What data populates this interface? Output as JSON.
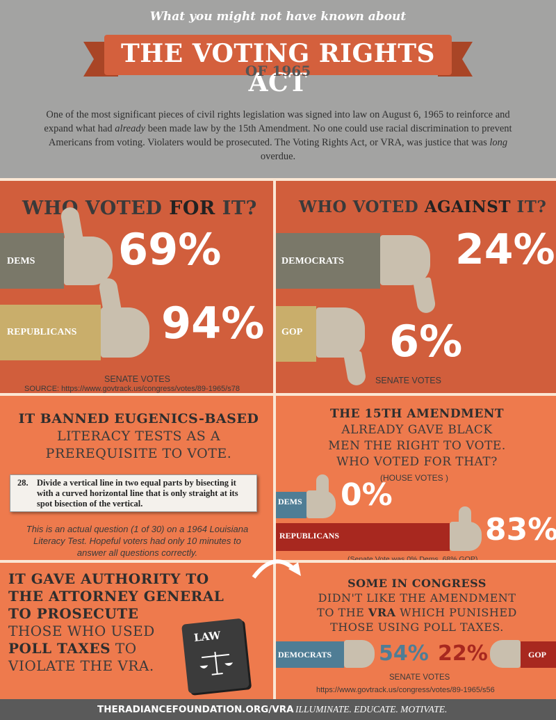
{
  "header": {
    "pretitle": "What you might not have known about",
    "title": "THE VOTING RIGHTS ACT",
    "subtitle": "OF 1965",
    "intro_1": "One of the most significant pieces of civil rights legislation was signed into law on August 6, 1965 to reinforce and expand what had ",
    "intro_em1": "already",
    "intro_2": " been made law by the 15th Amendment. No one could use racial discrimination to prevent Americans from voting. Violaters would be prosecuted. The Voting Rights Act, or VRA, was justice that was ",
    "intro_em2": "long",
    "intro_3": " overdue."
  },
  "voted_for": {
    "heading_pre": "WHO VOTED ",
    "heading_em": "FOR",
    "heading_post": " IT?",
    "dems_label": "DEMS",
    "dems_pct": "69%",
    "rep_label": "REPUBLICANS",
    "rep_pct": "94%",
    "caption": "SENATE VOTES",
    "source": "SOURCE:  https://www.govtrack.us/congress/votes/89-1965/s78"
  },
  "voted_against": {
    "heading_pre": "WHO VOTED ",
    "heading_em": "AGAINST",
    "heading_post": " IT?",
    "dems_label": "DEMOCRATS",
    "dems_pct": "24%",
    "gop_label": "GOP",
    "gop_pct": "6%",
    "caption": "SENATE VOTES"
  },
  "eugenics": {
    "line1": "IT BANNED EUGENICS-BASED",
    "line2": "LITERACY TESTS AS A",
    "line3": "PREREQUISITE TO VOTE.",
    "q_num": "28.",
    "q_text": "Divide a vertical line in two equal parts by bisecting it with a curved horizontal line that is only straight at its spot bisection of the vertical.",
    "note": "This is an actual question (1 of 30) on a 1964 Louisiana Literacy Test. Hopeful voters had only 10 minutes to answer all questions correctly."
  },
  "fifteenth": {
    "line1": "THE 15TH AMENDMENT",
    "line2": "ALREADY GAVE BLACK",
    "line3": "MEN THE RIGHT TO VOTE.",
    "line4": "WHO VOTED FOR THAT?",
    "house": "(HOUSE VOTES )",
    "dems_label": "DEMS",
    "dems_pct": "0%",
    "rep_label": "REPUBLICANS",
    "rep_pct": "83%",
    "senate_note": "(Senate Vote was 0% Dems, 68% GOP)"
  },
  "attorney": {
    "line1": "IT GAVE AUTHORITY TO",
    "line2": "THE ATTORNEY GENERAL",
    "line3": "TO PROSECUTE",
    "line4": "THOSE WHO USED",
    "line5": "POLL TAXES",
    "line5b": " TO",
    "line6": "VIOLATE THE VRA.",
    "book_label": "LAW"
  },
  "poll_tax": {
    "line1": "SOME IN CONGRESS",
    "line2": "DIDN'T LIKE THE AMENDMENT",
    "line3_pre": "TO THE ",
    "line3_em": "VRA",
    "line3_post": " WHICH PUNISHED",
    "line4": "THOSE USING POLL TAXES.",
    "dems_label": "DEMOCRATS",
    "dems_pct": "54%",
    "gop_pct": "22%",
    "gop_label": "GOP",
    "caption": "SENATE VOTES",
    "source": "https://www.govtrack.us/congress/votes/89-1965/s56"
  },
  "footer": {
    "site": "THERADIANCEFOUNDATION.ORG/VRA",
    "tagline": "ILLUMINATE. EDUCATE. MOTIVATE."
  },
  "colors": {
    "panel_dark": "#d15e3c",
    "panel_light": "#ee7a4d",
    "header_gray": "#a3a3a2",
    "sleeve_olive": "#7a7869",
    "sleeve_tan": "#c9ae6b",
    "sleeve_blue": "#4f7d95",
    "sleeve_red": "#a8281f"
  }
}
